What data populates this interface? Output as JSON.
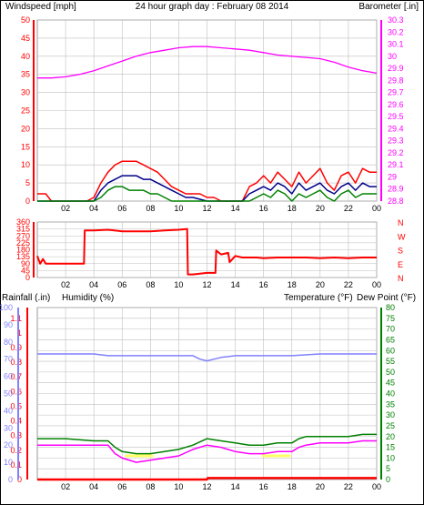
{
  "colors": {
    "wind_speed": "#ff0000",
    "wind_avg": "#00008b",
    "wind_low": "#008000",
    "barometer": "#ff00ff",
    "direction": "#ff0000",
    "rainfall": "#ff0000",
    "humidity": "#8080ff",
    "temperature": "#008000",
    "dewpoint": "#ff00ff",
    "marker": "#ffff66",
    "title": "#0000cc",
    "grid": "#bfbfbf"
  },
  "header": {
    "left": "Windspeed [mph]",
    "center": "24 hour graph day : February 08 2014",
    "right": "Barometer [.in]"
  },
  "chart_data": [
    {
      "type": "line",
      "ylabel": "Windspeed [mph]",
      "y2label": "Barometer [.in]",
      "ylim": [
        0,
        50
      ],
      "y2lim": [
        28.8,
        30.3
      ],
      "yticks": [
        "0",
        "5",
        "10",
        "15",
        "20",
        "25",
        "30",
        "35",
        "40",
        "45",
        "50"
      ],
      "y2ticks": [
        "28.8",
        "28.9",
        "29",
        "29.1",
        "29.2",
        "29.3",
        "29.4",
        "29.5",
        "29.6",
        "29.7",
        "29.8",
        "29.9",
        "30",
        "30.1",
        "30.2",
        "30.3"
      ],
      "xticks": [
        "02",
        "04",
        "06",
        "08",
        "10",
        "12",
        "14",
        "16",
        "18",
        "20",
        "22",
        "00"
      ],
      "xlim": [
        0,
        24
      ],
      "series": [
        {
          "key": "barometer",
          "axis": "right",
          "x": [
            0,
            1,
            2,
            3,
            4,
            5,
            6,
            7,
            8,
            9,
            10,
            11,
            12,
            13,
            14,
            15,
            16,
            17,
            18,
            19,
            20,
            21,
            22,
            23,
            24
          ],
          "values": [
            29.82,
            29.82,
            29.83,
            29.85,
            29.88,
            29.92,
            29.96,
            30.0,
            30.03,
            30.05,
            30.07,
            30.08,
            30.08,
            30.07,
            30.06,
            30.05,
            30.03,
            30.01,
            30.0,
            29.99,
            29.98,
            29.95,
            29.91,
            29.88,
            29.86
          ]
        },
        {
          "key": "wind_speed",
          "axis": "left",
          "x": [
            0,
            0.6,
            1,
            2,
            3,
            3.5,
            4,
            4.5,
            5,
            5.5,
            6,
            6.5,
            7,
            7.5,
            8,
            8.5,
            9,
            9.5,
            10,
            10.5,
            11,
            11.5,
            12,
            12.5,
            13,
            13.5,
            14,
            14.5,
            15,
            15.5,
            16,
            16.5,
            17,
            17.5,
            18,
            18.5,
            19,
            19.5,
            20,
            20.5,
            21,
            21.5,
            22,
            22.5,
            23,
            23.5,
            24
          ],
          "values": [
            2,
            2,
            0,
            0,
            0,
            0,
            1,
            5,
            8,
            10,
            11,
            11,
            11,
            10,
            9,
            8,
            6,
            4,
            3,
            2,
            2,
            2,
            1,
            1,
            0,
            0,
            0,
            0,
            4,
            5,
            7,
            5,
            8,
            6,
            4,
            8,
            5,
            7,
            9,
            5,
            3,
            7,
            8,
            5,
            9,
            8,
            8
          ]
        },
        {
          "key": "wind_avg",
          "axis": "left",
          "x": [
            0,
            1,
            2,
            3,
            3.5,
            4,
            4.5,
            5,
            5.5,
            6,
            6.5,
            7,
            7.5,
            8,
            8.5,
            9,
            9.5,
            10,
            10.5,
            11,
            12,
            13,
            14,
            14.5,
            15,
            15.5,
            16,
            16.5,
            17,
            17.5,
            18,
            18.5,
            19,
            19.5,
            20,
            20.5,
            21,
            21.5,
            22,
            22.5,
            23,
            23.5,
            24
          ],
          "values": [
            0,
            0,
            0,
            0,
            0,
            0,
            3,
            5,
            6,
            7,
            7,
            7,
            6,
            6,
            5,
            4,
            3,
            2,
            1,
            1,
            0,
            0,
            0,
            0,
            2,
            3,
            4,
            3,
            5,
            4,
            2,
            5,
            3,
            4,
            5,
            3,
            2,
            4,
            5,
            3,
            5,
            4,
            4
          ]
        },
        {
          "key": "wind_low",
          "axis": "left",
          "x": [
            0,
            3.5,
            4,
            4.5,
            5,
            5.5,
            6,
            6.5,
            7,
            7.5,
            8,
            8.5,
            9,
            9.5,
            10,
            11,
            14.5,
            15,
            15.5,
            16,
            16.5,
            17,
            17.5,
            18,
            18.5,
            19,
            19.5,
            20,
            20.5,
            21,
            21.5,
            22,
            22.5,
            23,
            23.5,
            24
          ],
          "values": [
            0,
            0,
            0,
            1,
            3,
            4,
            4,
            3,
            3,
            3,
            2,
            2,
            1,
            0,
            0,
            0,
            0,
            0,
            1,
            2,
            1,
            3,
            2,
            0,
            2,
            1,
            2,
            3,
            1,
            0,
            2,
            3,
            1,
            2,
            2,
            2
          ]
        }
      ]
    },
    {
      "type": "line",
      "ylim": [
        0,
        360
      ],
      "yticks": [
        "0",
        "45",
        "90",
        "135",
        "180",
        "225",
        "270",
        "315",
        "360"
      ],
      "compass": [
        "N",
        "W",
        "S",
        "E",
        "N"
      ],
      "xticks": [
        "02",
        "04",
        "06",
        "08",
        "10",
        "12",
        "14",
        "16",
        "18",
        "20",
        "22",
        "00"
      ],
      "xlim": [
        0,
        24
      ],
      "series": [
        {
          "key": "direction",
          "x": [
            0,
            0.2,
            0.4,
            0.6,
            1,
            2,
            3,
            3.3,
            3.35,
            4,
            5,
            6,
            7,
            8,
            9,
            10,
            10.6,
            10.65,
            11,
            12,
            12.6,
            12.65,
            13,
            13.5,
            13.6,
            14,
            14.5,
            15,
            15.5,
            16,
            17,
            18,
            19,
            20,
            21,
            22,
            23,
            24
          ],
          "values": [
            140,
            90,
            120,
            90,
            90,
            90,
            90,
            90,
            305,
            305,
            310,
            300,
            300,
            300,
            305,
            310,
            315,
            20,
            20,
            30,
            30,
            175,
            150,
            160,
            100,
            140,
            130,
            130,
            130,
            125,
            130,
            130,
            130,
            125,
            130,
            125,
            130,
            130
          ]
        }
      ]
    },
    {
      "type": "line",
      "labels": {
        "rainfall": "Rainfall (.in)",
        "humidity": "Humidity (%)",
        "temperature": "Temperature (°F)",
        "dewpoint": "Dew Point (°F)"
      },
      "y_rain_ticks": [
        "0",
        "0.1",
        "0.2",
        "0.3",
        "0.4",
        "0.5",
        "0.6",
        "0.7",
        "0.8",
        "0.9",
        "1",
        "1.1"
      ],
      "y_hum_ticks": [
        "0",
        "10",
        "20",
        "30",
        "40",
        "50",
        "60",
        "70",
        "80",
        "90",
        "100"
      ],
      "y_temp_ticks": [
        "0",
        "5",
        "10",
        "15",
        "20",
        "25",
        "30",
        "35",
        "40",
        "45",
        "50",
        "55",
        "60",
        "65",
        "70",
        "75",
        "80"
      ],
      "temp_ylim": [
        0,
        80
      ],
      "xticks": [
        "02",
        "04",
        "06",
        "08",
        "10",
        "12",
        "14",
        "16",
        "18",
        "20",
        "22",
        "00"
      ],
      "xlim": [
        0,
        24
      ],
      "series": [
        {
          "key": "humidity",
          "x": [
            0,
            2,
            4,
            5,
            6,
            8,
            10,
            11,
            11.5,
            12,
            12.5,
            13,
            14,
            16,
            18,
            20,
            22,
            24
          ],
          "values": [
            73,
            73,
            73,
            72,
            72,
            72,
            72,
            72,
            70,
            69,
            70,
            71,
            72,
            72,
            72,
            73,
            73,
            73
          ]
        },
        {
          "key": "temperature",
          "x": [
            0,
            2,
            4,
            5,
            5.5,
            6,
            7,
            8,
            9,
            10,
            11,
            12,
            13,
            14,
            15,
            16,
            17,
            18,
            18.5,
            19,
            20,
            21,
            22,
            23,
            24
          ],
          "values": [
            19,
            19,
            18,
            18,
            15,
            13,
            12,
            12,
            13,
            14,
            16,
            19,
            18,
            17,
            16,
            16,
            17,
            17,
            19,
            20,
            20,
            20,
            20,
            21,
            21
          ]
        },
        {
          "key": "dewpoint",
          "x": [
            0,
            2,
            4,
            5,
            5.5,
            6,
            7,
            8,
            9,
            10,
            11,
            12,
            13,
            14,
            15,
            16,
            17,
            18,
            18.5,
            19,
            20,
            21,
            22,
            23,
            24
          ],
          "values": [
            16,
            16,
            16,
            16,
            12,
            10,
            8,
            9,
            10,
            11,
            14,
            16,
            15,
            13,
            12,
            12,
            13,
            13,
            15,
            16,
            17,
            17,
            17,
            18,
            18
          ]
        },
        {
          "key": "rainfall",
          "x": [
            0,
            12,
            12.05,
            24
          ],
          "values": [
            0,
            0,
            0.01,
            0.01
          ]
        }
      ]
    }
  ]
}
